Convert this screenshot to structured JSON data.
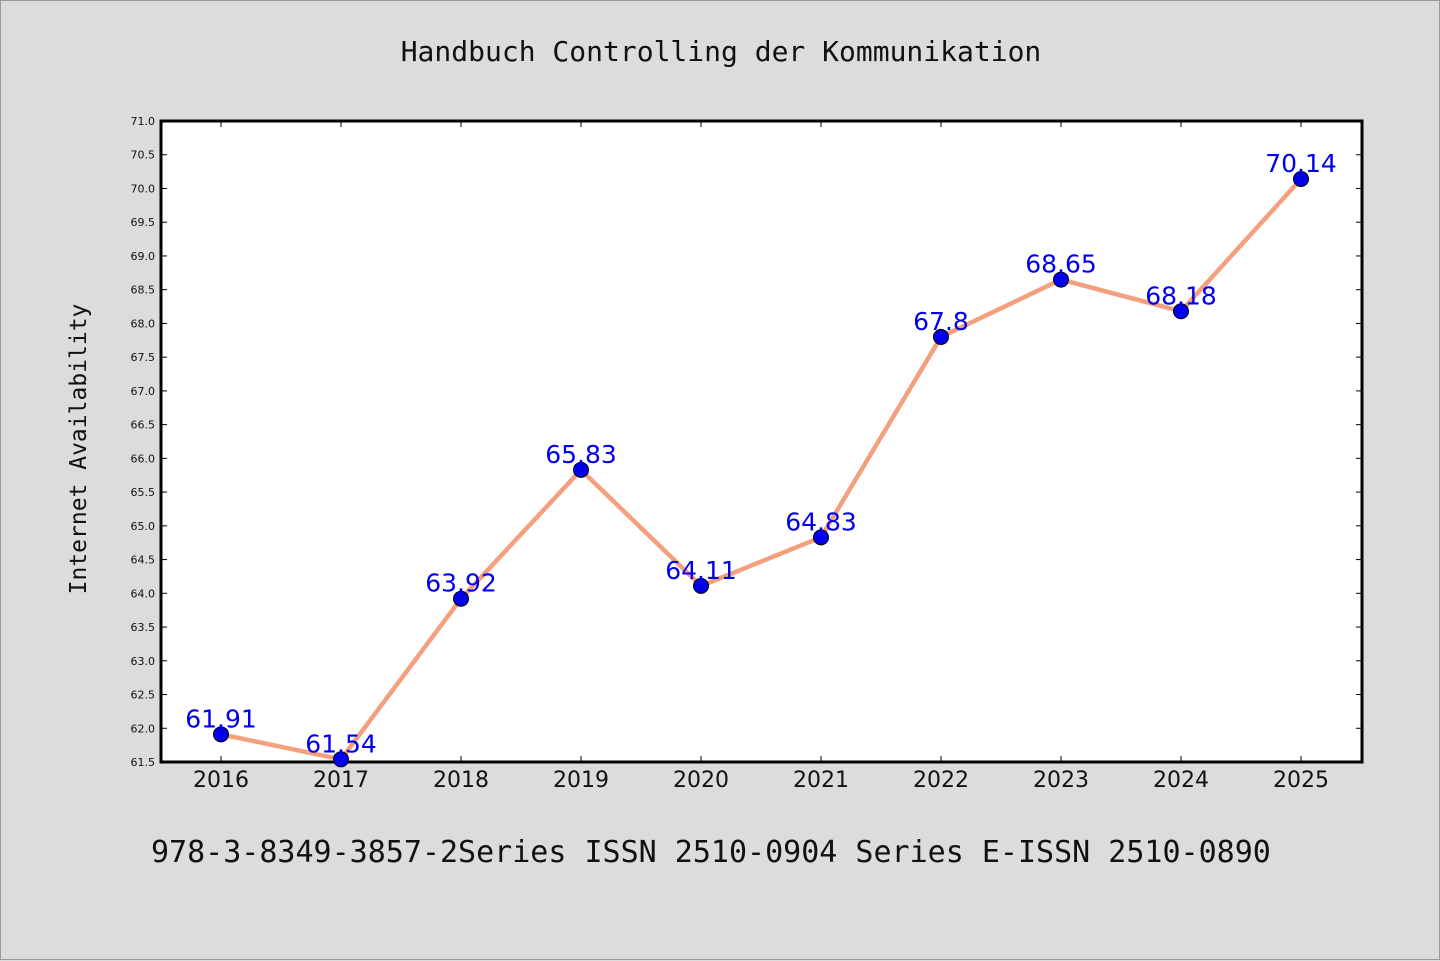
{
  "page": {
    "title": "Handbuch Controlling der Kommunikation",
    "footer": "978-3-8349-3857-2Series ISSN 2510-0904 Series E-ISSN 2510-0890"
  },
  "colors": {
    "line": "#f4a07e",
    "marker": "#0000ee",
    "label": "#0000ee",
    "plot_background": "#ffffff",
    "page_background": "#dcdcdc"
  },
  "chart_data": {
    "type": "line",
    "title": "Handbuch Controlling der Kommunikation",
    "xlabel": "",
    "ylabel": "Internet Availability",
    "categories": [
      "2016",
      "2017",
      "2018",
      "2019",
      "2020",
      "2021",
      "2022",
      "2023",
      "2024",
      "2025"
    ],
    "series": [
      {
        "values": [
          61.91,
          61.54,
          63.92,
          65.83,
          64.11,
          64.83,
          67.8,
          68.65,
          68.18,
          70.14
        ]
      }
    ],
    "data_labels": [
      "61.91",
      "61.54",
      "63.92",
      "65.83",
      "64.11",
      "64.83",
      "67.8",
      "68.65",
      "68.18",
      "70.14"
    ],
    "ylim": [
      61.5,
      71.0
    ],
    "yticks": [
      "61.5",
      "62.0",
      "62.5",
      "63.0",
      "63.5",
      "64.0",
      "64.5",
      "65.0",
      "65.5",
      "66.0",
      "66.5",
      "67.0",
      "67.5",
      "68.0",
      "68.5",
      "69.0",
      "69.5",
      "70.0",
      "70.5",
      "71.0"
    ],
    "grid": false,
    "legend": "none"
  }
}
